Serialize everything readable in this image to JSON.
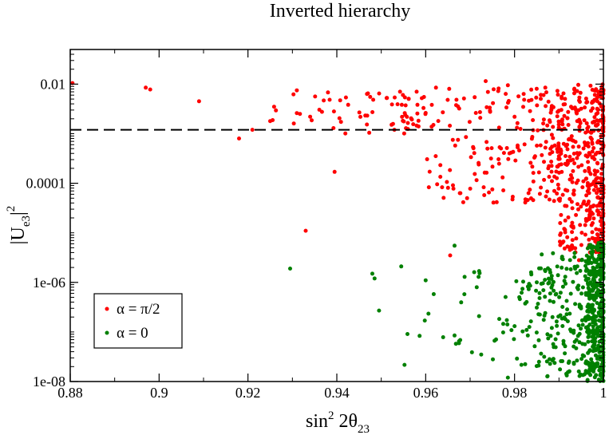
{
  "chart_data": {
    "type": "scatter",
    "title": "Inverted hierarchy",
    "xlabel": {
      "base": "sin",
      "sup": "2",
      "mid": " 2θ",
      "sub": "23"
    },
    "ylabel": {
      "base": "|U",
      "sub": "e3",
      "end": "|",
      "sup": "2"
    },
    "xlim": [
      0.88,
      1.0
    ],
    "ylim": [
      1e-08,
      0.05
    ],
    "yscale": "log",
    "x_ticks": [
      {
        "value": 0.88,
        "label": "0.88"
      },
      {
        "value": 0.9,
        "label": "0.9"
      },
      {
        "value": 0.92,
        "label": "0.92"
      },
      {
        "value": 0.94,
        "label": "0.94"
      },
      {
        "value": 0.96,
        "label": "0.96"
      },
      {
        "value": 0.98,
        "label": "0.98"
      },
      {
        "value": 1.0,
        "label": "1"
      }
    ],
    "y_ticks": [
      {
        "value": 1e-08,
        "label": "1e-08"
      },
      {
        "value": 1e-06,
        "label": "1e-06"
      },
      {
        "value": 0.0001,
        "label": "0.0001"
      },
      {
        "value": 0.01,
        "label": "0.01"
      }
    ],
    "reference_line": {
      "y": 0.0012,
      "style": "dashed",
      "color": "#000000"
    },
    "legend": {
      "position": "bottom-left",
      "entries": [
        {
          "label": "α = π/2",
          "color": "#ff0000"
        },
        {
          "label": "α = 0",
          "color": "#008000"
        }
      ]
    },
    "series": [
      {
        "name": "α = π/2",
        "color": "#ff0000",
        "highlighted_points": [
          [
            0.8805,
            0.0105
          ],
          [
            0.897,
            0.0085
          ],
          [
            0.898,
            0.0078
          ],
          [
            0.909,
            0.0045
          ],
          [
            0.918,
            0.0008
          ],
          [
            0.921,
            0.0012
          ],
          [
            0.925,
            0.0018
          ],
          [
            0.931,
            0.0075
          ],
          [
            0.931,
            0.0026
          ],
          [
            0.933,
            1.1e-05
          ],
          [
            0.934,
            0.0022
          ],
          [
            0.938,
            0.0068
          ],
          [
            0.9395,
            0.00017
          ],
          [
            0.947,
            0.0065
          ],
          [
            0.9655,
            3.5e-06
          ],
          [
            0.9735,
            0.0115
          ],
          [
            0.9785,
            0.0095
          ],
          [
            0.9945,
            2.8e-06
          ]
        ],
        "cloud": [
          {
            "x_range": [
              0.925,
              0.96
            ],
            "log_y_range": [
              -3.0,
              -2.15
            ],
            "count": 70
          },
          {
            "x_range": [
              0.96,
              0.99
            ],
            "log_y_range": [
              -4.4,
              -2.05
            ],
            "count": 200
          },
          {
            "x_range": [
              0.99,
              1.0
            ],
            "log_y_range": [
              -5.4,
              -2.0
            ],
            "count": 420
          }
        ]
      },
      {
        "name": "α = 0",
        "color": "#008000",
        "highlighted_points": [
          [
            0.9295,
            1.9e-06
          ],
          [
            0.948,
            1.5e-06
          ],
          [
            0.9485,
            1.2e-06
          ],
          [
            0.9495,
            2.7e-07
          ],
          [
            0.9545,
            2.1e-06
          ],
          [
            0.96,
            1.1e-06
          ],
          [
            0.9665,
            5.5e-06
          ],
          [
            0.9665,
            8.5e-08
          ],
          [
            0.9675,
            6.5e-08
          ],
          [
            0.9725,
            3.5e-08
          ],
          [
            0.9785,
            1.2e-08
          ],
          [
            0.9855,
            2.5e-08
          ]
        ],
        "cloud": [
          {
            "x_range": [
              0.955,
              0.985
            ],
            "log_y_range": [
              -7.7,
              -5.6
            ],
            "count": 60
          },
          {
            "x_range": [
              0.985,
              0.998
            ],
            "log_y_range": [
              -7.9,
              -5.4
            ],
            "count": 230
          },
          {
            "x_range": [
              0.996,
              1.0
            ],
            "log_y_range": [
              -8.0,
              -5.2
            ],
            "count": 320
          }
        ]
      }
    ]
  }
}
